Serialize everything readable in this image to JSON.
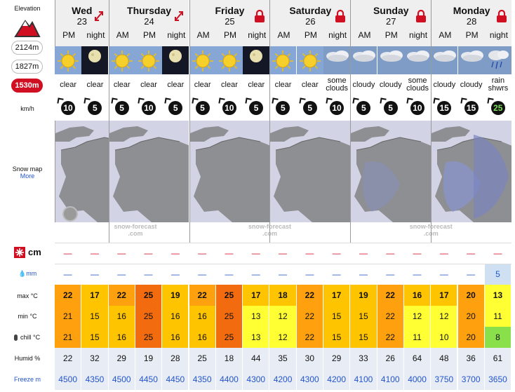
{
  "sidebar": {
    "elevation_label": "Elevation",
    "elevations": [
      "2124m",
      "1827m",
      "1530m"
    ],
    "active_elevation": "1530m",
    "wind_unit": "km/h",
    "snow_map_label": "Snow map",
    "more_link": "More",
    "snow_label": "cm",
    "rain_unit": "mm",
    "max_label": "max °C",
    "min_label": "min °C",
    "chill_label": "chill °C",
    "humid_label": "Humid %",
    "freeze_label": "Freeze m"
  },
  "days": [
    {
      "name": "Wed",
      "num": "23",
      "periods": [
        "PM",
        "night"
      ],
      "icon": "expand-arrow-icon"
    },
    {
      "name": "Thursday",
      "num": "24",
      "periods": [
        "AM",
        "PM",
        "night"
      ],
      "icon": "expand-arrow-icon"
    },
    {
      "name": "Friday",
      "num": "25",
      "periods": [
        "AM",
        "PM",
        "night"
      ],
      "icon": "lock-icon"
    },
    {
      "name": "Saturday",
      "num": "26",
      "periods": [
        "AM",
        "PM",
        "night"
      ],
      "icon": "lock-icon"
    },
    {
      "name": "Sunday",
      "num": "27",
      "periods": [
        "AM",
        "PM",
        "night"
      ],
      "icon": "lock-icon"
    },
    {
      "name": "Monday",
      "num": "28",
      "periods": [
        "AM",
        "PM",
        "night"
      ],
      "icon": "lock-icon"
    }
  ],
  "forecast": [
    {
      "wx": "sun",
      "label": "clear",
      "wind": "10",
      "snow": "—",
      "rain": "—",
      "max": "22",
      "min": "21",
      "chill": "21",
      "humid": "22",
      "freeze": "4500"
    },
    {
      "wx": "moon",
      "label": "clear",
      "wind": "5",
      "snow": "—",
      "rain": "—",
      "max": "17",
      "min": "15",
      "chill": "15",
      "humid": "32",
      "freeze": "4350"
    },
    {
      "wx": "sun",
      "label": "clear",
      "wind": "5",
      "snow": "—",
      "rain": "—",
      "max": "22",
      "min": "16",
      "chill": "16",
      "humid": "29",
      "freeze": "4500"
    },
    {
      "wx": "sun",
      "label": "clear",
      "wind": "10",
      "snow": "—",
      "rain": "—",
      "max": "25",
      "min": "25",
      "chill": "25",
      "humid": "19",
      "freeze": "4450"
    },
    {
      "wx": "moon",
      "label": "clear",
      "wind": "5",
      "snow": "—",
      "rain": "—",
      "max": "19",
      "min": "16",
      "chill": "16",
      "humid": "28",
      "freeze": "4450"
    },
    {
      "wx": "sun",
      "label": "clear",
      "wind": "5",
      "snow": "—",
      "rain": "—",
      "max": "22",
      "min": "16",
      "chill": "16",
      "humid": "25",
      "freeze": "4350"
    },
    {
      "wx": "sun",
      "label": "clear",
      "wind": "10",
      "snow": "—",
      "rain": "—",
      "max": "25",
      "min": "25",
      "chill": "25",
      "humid": "18",
      "freeze": "4400"
    },
    {
      "wx": "moon",
      "label": "clear",
      "wind": "5",
      "snow": "—",
      "rain": "—",
      "max": "17",
      "min": "13",
      "chill": "13",
      "humid": "44",
      "freeze": "4300"
    },
    {
      "wx": "sun",
      "label": "clear",
      "wind": "5",
      "snow": "—",
      "rain": "—",
      "max": "18",
      "min": "12",
      "chill": "12",
      "humid": "35",
      "freeze": "4200"
    },
    {
      "wx": "sun",
      "label": "clear",
      "wind": "5",
      "snow": "—",
      "rain": "—",
      "max": "22",
      "min": "22",
      "chill": "22",
      "humid": "30",
      "freeze": "4300"
    },
    {
      "wx": "cloud",
      "label": "some clouds",
      "wind": "10",
      "snow": "—",
      "rain": "—",
      "max": "17",
      "min": "15",
      "chill": "15",
      "humid": "29",
      "freeze": "4200"
    },
    {
      "wx": "cloud",
      "label": "cloudy",
      "wind": "5",
      "snow": "—",
      "rain": "—",
      "max": "19",
      "min": "15",
      "chill": "15",
      "humid": "33",
      "freeze": "4100"
    },
    {
      "wx": "cloud",
      "label": "cloudy",
      "wind": "5",
      "snow": "—",
      "rain": "—",
      "max": "22",
      "min": "22",
      "chill": "22",
      "humid": "26",
      "freeze": "4100"
    },
    {
      "wx": "cloud",
      "label": "some clouds",
      "wind": "10",
      "snow": "—",
      "rain": "—",
      "max": "16",
      "min": "12",
      "chill": "11",
      "humid": "64",
      "freeze": "4000"
    },
    {
      "wx": "cloud",
      "label": "cloudy",
      "wind": "15",
      "snow": "—",
      "rain": "—",
      "max": "17",
      "min": "12",
      "chill": "10",
      "humid": "48",
      "freeze": "3750"
    },
    {
      "wx": "cloud",
      "label": "cloudy",
      "wind": "15",
      "snow": "—",
      "rain": "—",
      "max": "20",
      "min": "20",
      "chill": "20",
      "humid": "36",
      "freeze": "3700"
    },
    {
      "wx": "rain",
      "label": "rain shwrs",
      "wind": "25",
      "snow": "—",
      "rain": "5",
      "max": "13",
      "min": "11",
      "chill": "8",
      "humid": "61",
      "freeze": "3650"
    }
  ],
  "watermark": [
    "snow-forecast",
    ".com"
  ],
  "colors": {
    "hot": "#f26b0e",
    "warm": "#ffa00f",
    "mild": "#ffc400",
    "cool": "#ffff33",
    "cold": "#8ae04a",
    "accent": "#d10f22",
    "link": "#2255cc"
  }
}
